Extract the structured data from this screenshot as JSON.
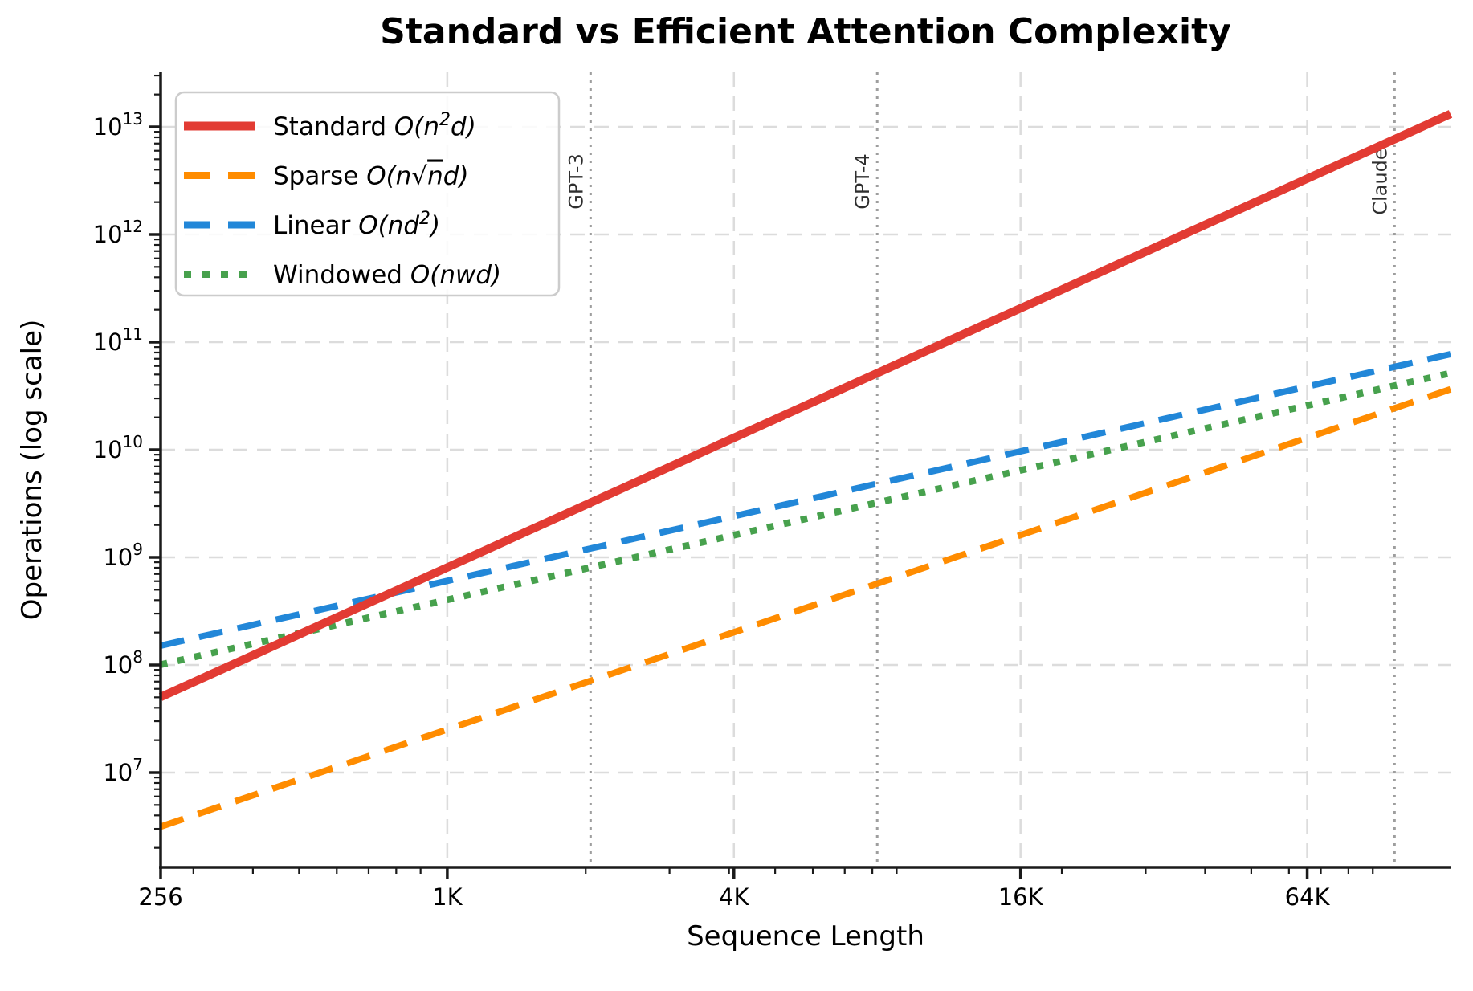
{
  "ui": {
    "title": "Standard vs Efficient Attention Complexity",
    "xlabel": "Sequence Length",
    "ylabel": "Operations (log scale)"
  },
  "colors": {
    "background": "#ffffff",
    "spine": "#1a1a1a",
    "tick_label": "#000000",
    "grid": "#dcdcdc",
    "annotation_line": "#9e9e9e",
    "annotation_text": "#2f2f2f",
    "legend_border": "#cccccc",
    "standard": "#e23b33",
    "sparse": "#ff8c00",
    "linear": "#2287d8",
    "windowed": "#47a14d"
  },
  "chart_data": {
    "type": "line",
    "title": "Standard vs Efficient Attention Complexity",
    "xlabel": "Sequence Length",
    "ylabel": "Operations (log scale)",
    "x_scale": "log",
    "y_scale": "log",
    "xlim": [
      256,
      131072
    ],
    "ylim_exponents": [
      6.12,
      13.51
    ],
    "grid": true,
    "legend_position": "upper left",
    "x": [
      256,
      512,
      1024,
      2048,
      4096,
      8192,
      16384,
      32768,
      65536,
      131072
    ],
    "x_ticks": [
      {
        "value": 256,
        "label": "256"
      },
      {
        "value": 1024,
        "label": "1K"
      },
      {
        "value": 4096,
        "label": "4K"
      },
      {
        "value": 16384,
        "label": "16K"
      },
      {
        "value": 65536,
        "label": "64K"
      }
    ],
    "y_tick_exponents": [
      7,
      8,
      9,
      10,
      11,
      12,
      13
    ],
    "series": [
      {
        "id": "standard",
        "label_text": "Standard",
        "formula": [
          {
            "t": "O(n"
          },
          {
            "t": "2",
            "sup": true
          },
          {
            "t": "d)"
          }
        ],
        "style": "solid",
        "color": "#e23b33",
        "values": [
          50331648,
          201326592,
          805306368,
          3221225472,
          12884901888,
          51539607552,
          206158430208,
          824633720832,
          3298534883328,
          13194139533312
        ]
      },
      {
        "id": "sparse",
        "label_text": "Sparse",
        "formula": [
          {
            "t": "O(n"
          },
          {
            "t": "√"
          },
          {
            "t": "n",
            "overline": true
          },
          {
            "t": "d)"
          }
        ],
        "style": "dashed",
        "color": "#ff8c00",
        "values": [
          3145728,
          8897463,
          25165824,
          71179700,
          201326592,
          569437670,
          1610612736,
          4555501056,
          12884901888,
          36444005836
        ]
      },
      {
        "id": "linear",
        "label_text": "Linear",
        "formula": [
          {
            "t": "O(nd"
          },
          {
            "t": "2",
            "sup": true
          },
          {
            "t": ")"
          }
        ],
        "style": "dashed",
        "color": "#2287d8",
        "values": [
          150994944,
          301989888,
          603979776,
          1207959552,
          2415919104,
          4831838208,
          9663676416,
          19327352832,
          38654705664,
          77309411328
        ]
      },
      {
        "id": "windowed",
        "label_text": "Windowed",
        "formula": [
          {
            "t": "O(nwd)"
          }
        ],
        "style": "dotted",
        "color": "#47a14d",
        "values": [
          100663296,
          201326592,
          402653184,
          805306368,
          1610612736,
          3221225472,
          6442450944,
          12884901888,
          25769803776,
          51539607552
        ]
      }
    ],
    "annotations": [
      {
        "label": "GPT-3",
        "x": 2048
      },
      {
        "label": "GPT-4",
        "x": 8192
      },
      {
        "label": "Claude",
        "x": 100000
      }
    ]
  }
}
